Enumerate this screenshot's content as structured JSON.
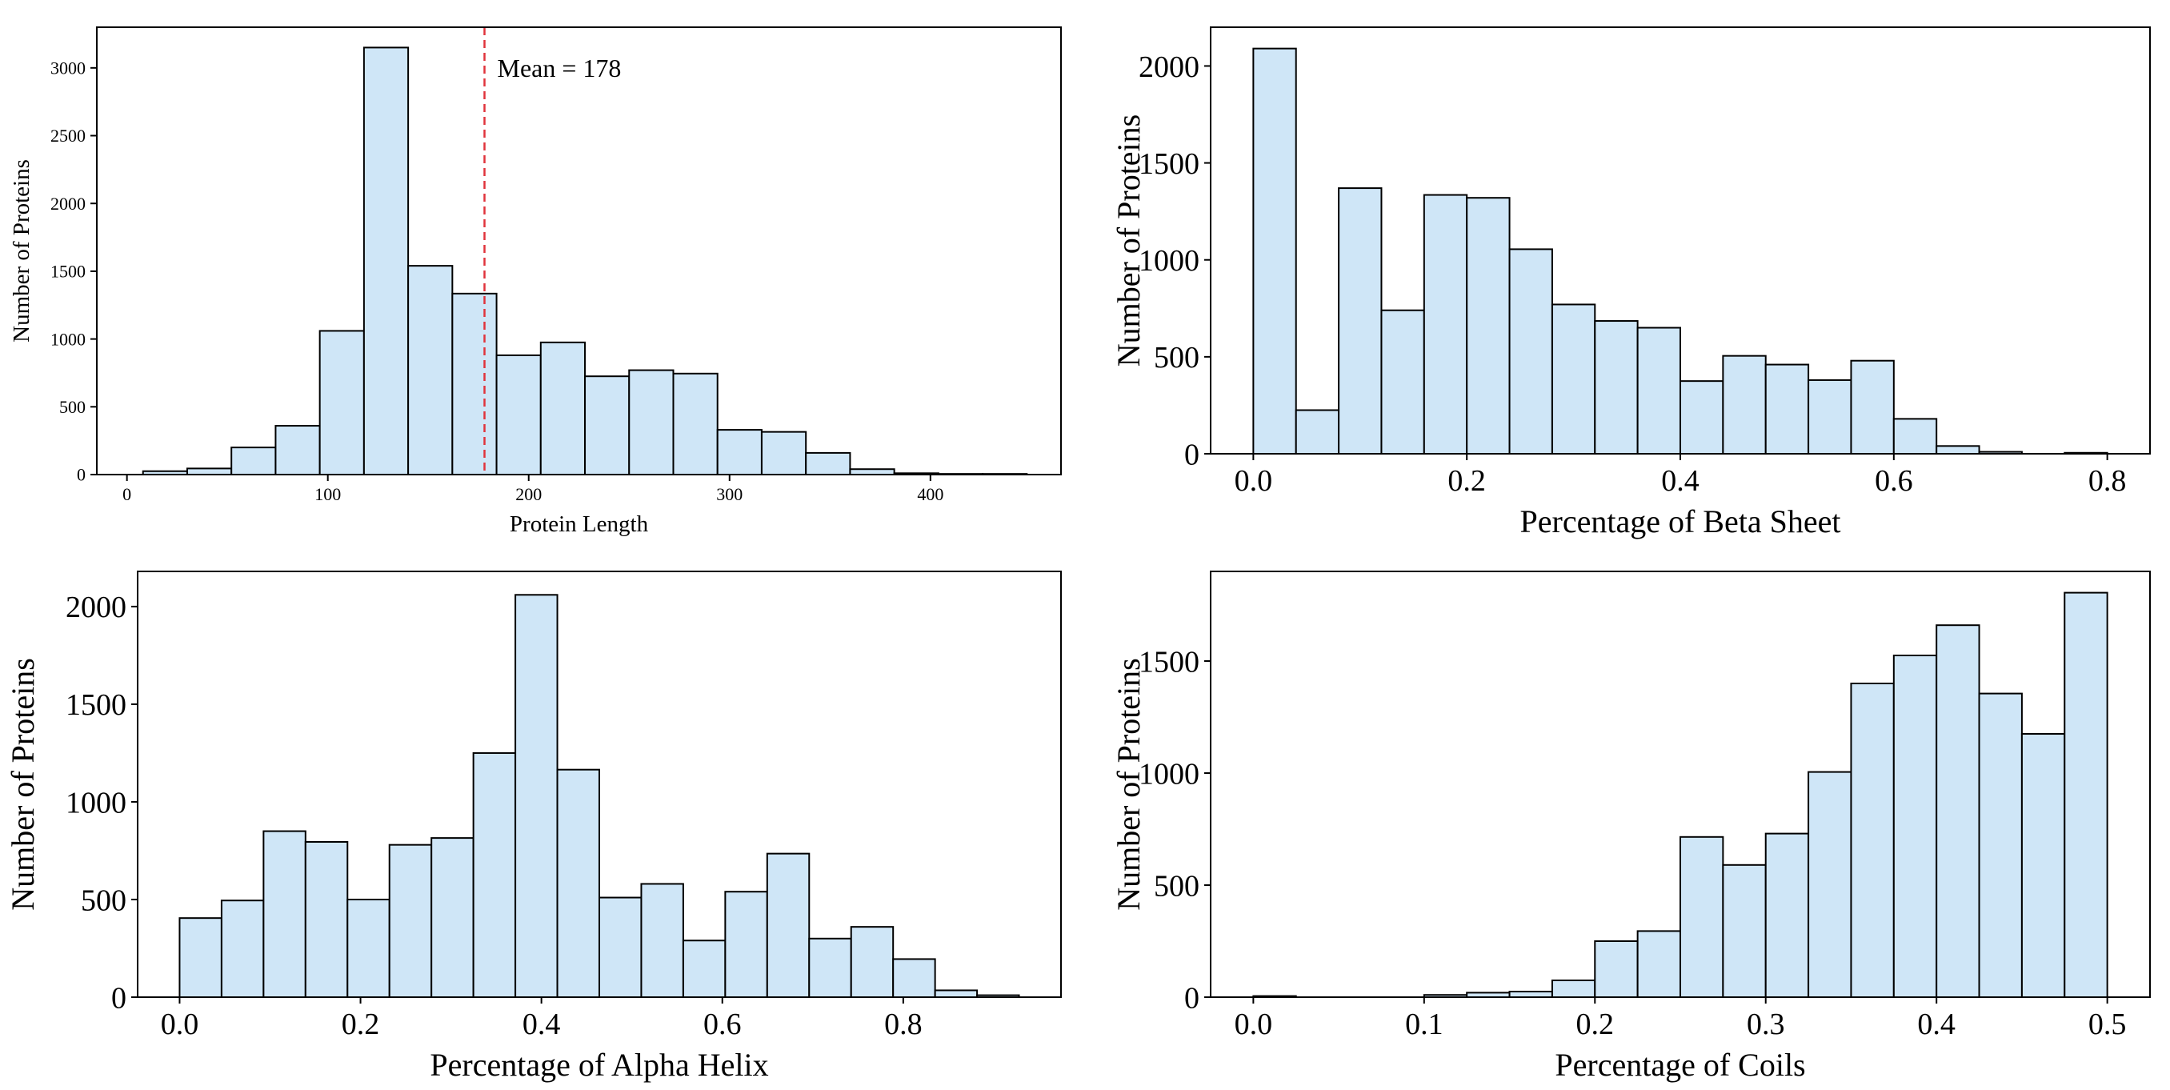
{
  "colors": {
    "bar_fill": "#cfe6f7",
    "bar_edge": "#000000",
    "mean_line": "#e0343c"
  },
  "chart_data": [
    {
      "type": "bar",
      "variant": "histogram",
      "xlabel": "Protein Length",
      "ylabel": "Number of Proteins",
      "xlim": [
        -15,
        465
      ],
      "ylim": [
        0,
        3300
      ],
      "xticks": [
        0,
        100,
        200,
        300,
        400
      ],
      "yticks": [
        0,
        500,
        1000,
        1500,
        2000,
        2500,
        3000
      ],
      "xtick_labels": [
        "0",
        "100",
        "200",
        "300",
        "400"
      ],
      "ytick_labels": [
        "0",
        "500",
        "1000",
        "1500",
        "2000",
        "2500",
        "3000"
      ],
      "bins": {
        "edges": [
          8,
          30,
          52,
          74,
          96,
          118,
          140,
          162,
          184,
          206,
          228,
          250,
          272,
          294,
          316,
          338,
          360,
          382,
          404,
          426,
          448
        ],
        "counts": [
          25,
          45,
          200,
          360,
          1060,
          3150,
          1540,
          1335,
          880,
          975,
          725,
          770,
          745,
          330,
          315,
          160,
          40,
          10,
          5,
          5
        ]
      },
      "mean_line": {
        "x": 178,
        "label": "Mean = 178"
      },
      "grid": false
    },
    {
      "type": "bar",
      "variant": "histogram",
      "xlabel": "Percentage of Beta Sheet",
      "ylabel": "Number of Proteins",
      "xlim": [
        -0.04,
        0.84
      ],
      "ylim": [
        0,
        2200
      ],
      "xticks": [
        0.0,
        0.2,
        0.4,
        0.6,
        0.8
      ],
      "yticks": [
        0,
        500,
        1000,
        1500,
        2000
      ],
      "xtick_labels": [
        "0.0",
        "0.2",
        "0.4",
        "0.6",
        "0.8"
      ],
      "ytick_labels": [
        "0",
        "500",
        "1000",
        "1500",
        "2000"
      ],
      "bins": {
        "edges": [
          0.0,
          0.04,
          0.08,
          0.12,
          0.16,
          0.2,
          0.24,
          0.28,
          0.32,
          0.36,
          0.4,
          0.44,
          0.48,
          0.52,
          0.56,
          0.6,
          0.64,
          0.68,
          0.72,
          0.76,
          0.8
        ],
        "counts": [
          2090,
          225,
          1370,
          740,
          1335,
          1320,
          1055,
          770,
          685,
          650,
          375,
          505,
          460,
          380,
          480,
          180,
          40,
          10,
          0,
          5
        ]
      },
      "grid": false
    },
    {
      "type": "bar",
      "variant": "histogram",
      "xlabel": "Percentage of Alpha Helix",
      "ylabel": "Number of Proteins",
      "xlim": [
        -0.0464,
        0.9744
      ],
      "ylim": [
        0,
        2180
      ],
      "xticks": [
        0.0,
        0.2,
        0.4,
        0.6,
        0.8
      ],
      "yticks": [
        0,
        500,
        1000,
        1500,
        2000
      ],
      "xtick_labels": [
        "0.0",
        "0.2",
        "0.4",
        "0.6",
        "0.8"
      ],
      "ytick_labels": [
        "0",
        "500",
        "1000",
        "1500",
        "2000"
      ],
      "bins": {
        "edges": [
          0.0,
          0.0464,
          0.0928,
          0.1392,
          0.1856,
          0.232,
          0.2784,
          0.3248,
          0.3712,
          0.4176,
          0.464,
          0.5104,
          0.5568,
          0.6032,
          0.6496,
          0.696,
          0.7424,
          0.7888,
          0.8352,
          0.8816,
          0.928
        ],
        "counts": [
          405,
          495,
          850,
          795,
          500,
          780,
          815,
          1250,
          2060,
          1165,
          510,
          580,
          290,
          540,
          735,
          300,
          360,
          195,
          35,
          10
        ]
      },
      "grid": false
    },
    {
      "type": "bar",
      "variant": "histogram",
      "xlabel": "Percentage of Coils",
      "ylabel": "Number of Proteins",
      "xlim": [
        -0.025,
        0.525
      ],
      "ylim": [
        0,
        1900
      ],
      "xticks": [
        0.0,
        0.1,
        0.2,
        0.3,
        0.4,
        0.5
      ],
      "yticks": [
        0,
        500,
        1000,
        1500
      ],
      "xtick_labels": [
        "0.0",
        "0.1",
        "0.2",
        "0.3",
        "0.4",
        "0.5"
      ],
      "ytick_labels": [
        "0",
        "500",
        "1000",
        "1500"
      ],
      "bins": {
        "edges": [
          0.0,
          0.025,
          0.05,
          0.075,
          0.1,
          0.125,
          0.15,
          0.175,
          0.2,
          0.225,
          0.25,
          0.275,
          0.3,
          0.325,
          0.35,
          0.375,
          0.4,
          0.425,
          0.45,
          0.475,
          0.5
        ],
        "counts": [
          5,
          0,
          0,
          0,
          10,
          20,
          25,
          75,
          250,
          295,
          715,
          590,
          730,
          1005,
          1400,
          1525,
          1660,
          1355,
          1175,
          1805
        ]
      },
      "grid": false
    }
  ]
}
